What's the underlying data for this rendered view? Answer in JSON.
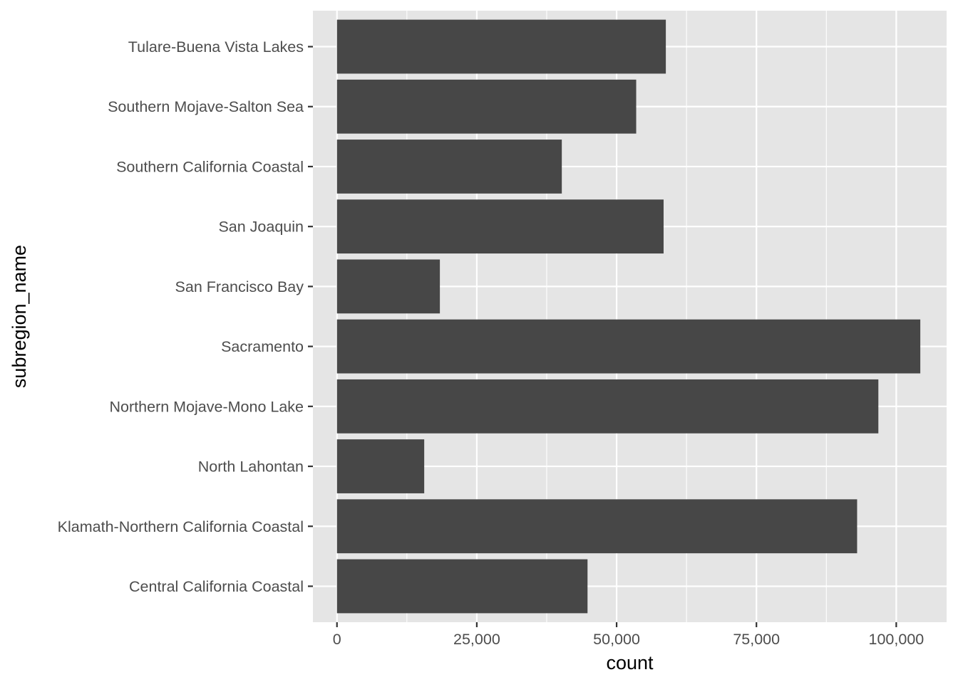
{
  "chart_data": {
    "type": "bar",
    "orientation": "horizontal",
    "title": "",
    "xlabel": "count",
    "ylabel": "subregion_name",
    "categories": [
      "Central California Coastal",
      "Klamath-Northern California Coastal",
      "North Lahontan",
      "Northern Mojave-Mono Lake",
      "Sacramento",
      "San Francisco Bay",
      "San Joaquin",
      "Southern California Coastal",
      "Southern Mojave-Salton Sea",
      "Tulare-Buena Vista Lakes"
    ],
    "values": [
      44800,
      93000,
      15600,
      96800,
      104300,
      18400,
      58400,
      40200,
      53500,
      58800
    ],
    "xlim": [
      -4300,
      109000
    ],
    "xticks": [
      0,
      25000,
      50000,
      75000,
      100000
    ],
    "xtick_labels": [
      "0",
      "25,000",
      "50,000",
      "75,000",
      "100,000"
    ],
    "grid": true,
    "colors": {
      "panel": "#e5e5e5",
      "grid": "#ffffff",
      "bar": "#474747",
      "text": "#4d4d4d",
      "title_text": "#000000",
      "tick": "#333333"
    }
  }
}
